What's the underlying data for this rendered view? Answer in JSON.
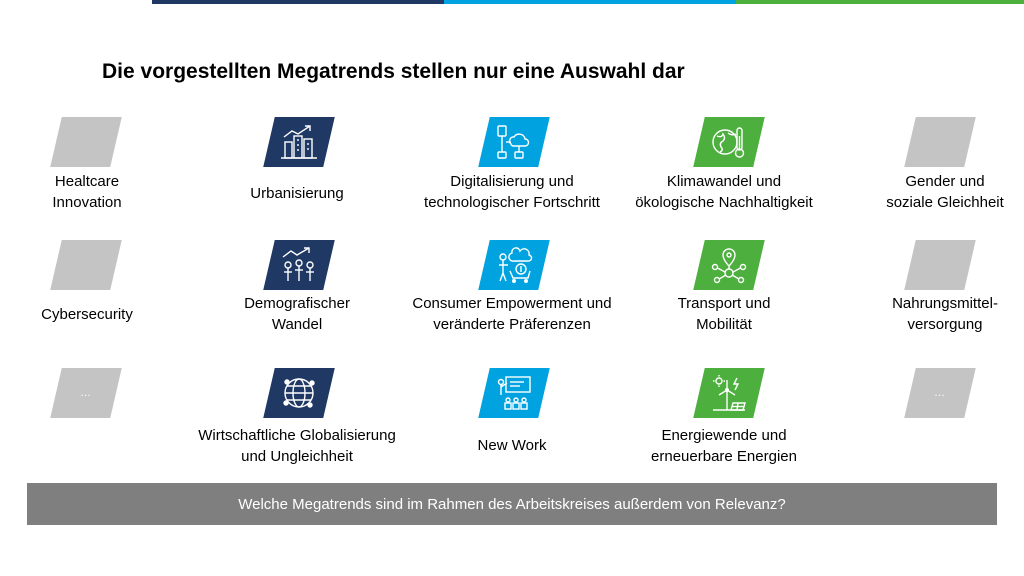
{
  "colors": {
    "navy": "#1f3864",
    "blue": "#00a3e0",
    "green": "#4daf3e",
    "grey_tile": "#c4c4c4",
    "banner": "#7f7f7f"
  },
  "title": "Die vorgestellten Megatrends stellen nur eine Auswahl dar",
  "columns": [
    {
      "items": [
        {
          "label": "Healtcare\nInnovation",
          "icon": "blank"
        },
        {
          "label": "Cybersecurity",
          "icon": "blank"
        },
        {
          "label": "",
          "icon": "ellipsis",
          "tile_text": "…"
        }
      ]
    },
    {
      "items": [
        {
          "label": "Urbanisierung",
          "icon": "city-growth-icon"
        },
        {
          "label": "Demografischer\nWandel",
          "icon": "population-growth-icon"
        },
        {
          "label": "Wirtschaftliche Globalisierung\nund Ungleichheit",
          "icon": "globe-network-icon"
        }
      ]
    },
    {
      "items": [
        {
          "label": "Digitalisierung und\ntechnologischer Fortschritt",
          "icon": "cloud-devices-icon"
        },
        {
          "label": "Consumer Empowerment und\nveränderte Präferenzen",
          "icon": "consumer-cart-icon"
        },
        {
          "label": "New Work",
          "icon": "presentation-team-icon"
        }
      ]
    },
    {
      "items": [
        {
          "label": "Klimawandel und\nökologische Nachhaltigkeit",
          "icon": "globe-thermometer-icon"
        },
        {
          "label": "Transport und\nMobilität",
          "icon": "location-network-icon"
        },
        {
          "label": "Energiewende und\nerneuerbare Energien",
          "icon": "renewable-energy-icon"
        }
      ]
    },
    {
      "items": [
        {
          "label": "Gender und\nsoziale Gleichheit",
          "icon": "blank"
        },
        {
          "label": "Nahrungsmittel-\nversorgung",
          "icon": "blank"
        },
        {
          "label": "",
          "icon": "ellipsis",
          "tile_text": "…"
        }
      ]
    }
  ],
  "banner": "Welche Megatrends sind im Rahmen des Arbeitskreises außerdem von Relevanz?"
}
